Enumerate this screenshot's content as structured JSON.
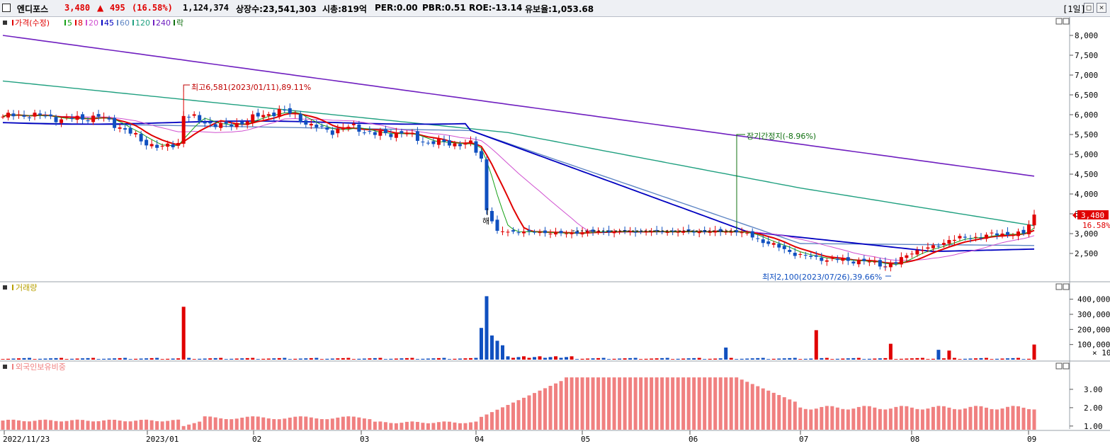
{
  "header": {
    "stock_name": "엔디포스",
    "price": "3,480",
    "change_arrow": "▲",
    "change": "495",
    "change_pct": "(16.58%)",
    "volume": "1,124,374",
    "listed": "상장수:23,541,303",
    "market_cap": "시총:819억",
    "per": "PER:0.00",
    "pbr": "PBR:0.51",
    "roe": "ROE:-13.14",
    "retention": "유보율:1,053.68",
    "period": "[1일]",
    "colors": {
      "up": "#e00000",
      "down": "#1050c0",
      "text": "#000000"
    }
  },
  "price_panel": {
    "legend": [
      {
        "label": "가격(수정)",
        "color": "#e00000"
      },
      {
        "label": "5",
        "color": "#16a016"
      },
      {
        "label": "8",
        "color": "#e00000"
      },
      {
        "label": "20",
        "color": "#d050d0"
      },
      {
        "label": "45",
        "color": "#0000c0"
      },
      {
        "label": "60",
        "color": "#5f86c4"
      },
      {
        "label": "120",
        "color": "#20a080"
      },
      {
        "label": "240",
        "color": "#7020c0"
      },
      {
        "label": "락",
        "color": "#107010"
      }
    ],
    "y_ticks": [
      "8,000",
      "7,500",
      "7,000",
      "6,500",
      "6,000",
      "5,500",
      "5,000",
      "4,500",
      "4,000",
      "3,500",
      "3,000",
      "2,500"
    ],
    "annotations": {
      "high": "최고6,581(2023/01/11),89.11%",
      "low": "최저2,100(2023/07/26),39.66%",
      "halt": "장기간정지(-8.96%)",
      "hae": "해"
    },
    "current_price_tag": "3,480",
    "current_pct_tag": "16.58%"
  },
  "volume_panel": {
    "legend": "거래량",
    "y_ticks": [
      "400,000",
      "300,000",
      "200,000",
      "100,000"
    ],
    "multiplier": "× 10"
  },
  "foreign_panel": {
    "legend": "외국인보유비중",
    "y_ticks": [
      "3.00",
      "2.00",
      "1.00"
    ]
  },
  "x_axis": {
    "labels": [
      "2022/11/23",
      "2023/01",
      "02",
      "03",
      "04",
      "05",
      "06",
      "07",
      "08",
      "09"
    ]
  },
  "chart_data": {
    "type": "candlestick",
    "x_labels": [
      "2022/11/23",
      "2023/01",
      "02",
      "03",
      "04",
      "05",
      "06",
      "07",
      "08",
      "09"
    ],
    "price_range": [
      2000,
      8300
    ],
    "high": {
      "value": 6581,
      "date": "2023/01/11"
    },
    "low": {
      "value": 2100,
      "date": "2023/07/26"
    },
    "last_close": 3480,
    "change": 495,
    "change_pct": 16.58,
    "moving_averages": [
      "5",
      "8",
      "20",
      "45",
      "60",
      "120",
      "240"
    ],
    "volume_range": [
      0,
      450000
    ],
    "foreign_ratio_range": [
      0.8,
      4.0
    ],
    "volume_x10": true
  }
}
